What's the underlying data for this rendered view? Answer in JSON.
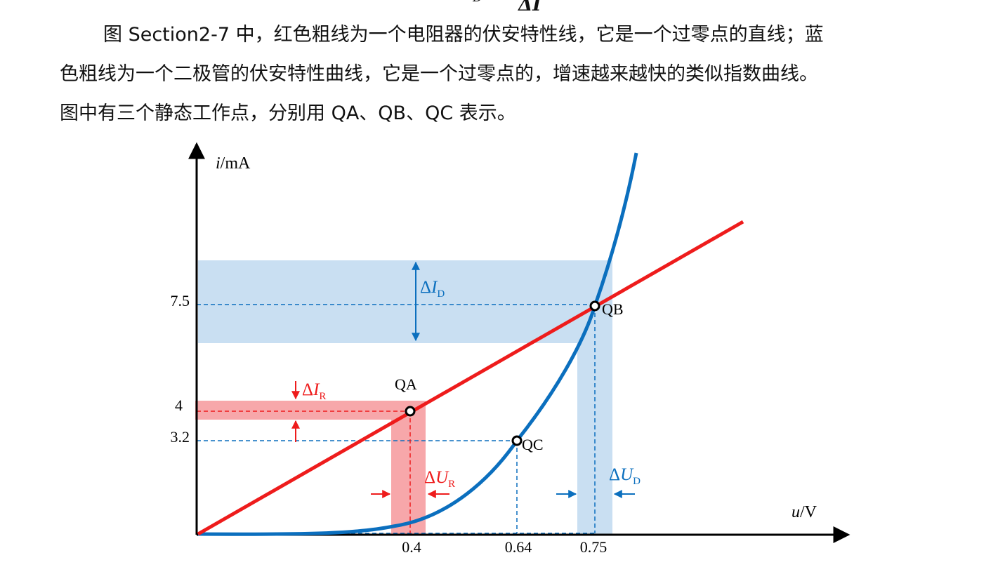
{
  "header_fragment": {
    "delta_symbol": "ΔI",
    "subscript": "D"
  },
  "paragraph": {
    "line1": "图 Section2-7 中，红色粗线为一个电阻器的伏安特性线，它是一个过零点的直线；蓝",
    "line2": "色粗线为一个二极管的伏安特性曲线，它是一个过零点的，增速越来越快的类似指数曲线。",
    "line3": "图中有三个静态工作点，分别用 QA、QB、QC 表示。"
  },
  "figure": {
    "y_axis_label_var": "i",
    "y_axis_label_unit": "/mA",
    "x_axis_label_var": "u",
    "x_axis_label_unit": "/V",
    "y_ticks": [
      "7.5",
      "4",
      "3.2"
    ],
    "x_ticks": [
      "0.4",
      "0.64",
      "0.75"
    ],
    "points": {
      "qa": "QA",
      "qb": "QB",
      "qc": "QC"
    },
    "delta_i_d": {
      "delta": "Δ",
      "var": "I",
      "sub": "D"
    },
    "delta_i_r": {
      "delta": "Δ",
      "var": "I",
      "sub": "R"
    },
    "delta_u_r": {
      "delta": "Δ",
      "var": "U",
      "sub": "R"
    },
    "delta_u_d": {
      "delta": "Δ",
      "var": "U",
      "sub": "D"
    },
    "colors": {
      "resistor": "#ee1c1c",
      "diode": "#0b6fbe",
      "diode_band": "#c9dff2",
      "resistor_band": "#f7a7aa",
      "axis": "#000000"
    }
  },
  "chart_data": {
    "type": "line",
    "xlabel": "u/V",
    "ylabel": "i/mA",
    "x_ticks": [
      0.4,
      0.64,
      0.75
    ],
    "y_ticks": [
      3.2,
      4,
      7.5
    ],
    "series": [
      {
        "x": [
          0,
          0.4,
          0.75,
          1.03
        ],
        "y": [
          0,
          4,
          7.5,
          10.3
        ]
      },
      {
        "x": [
          0,
          0.3,
          0.4,
          0.5,
          0.6,
          0.64,
          0.7,
          0.75,
          0.8
        ],
        "y": [
          0,
          0.05,
          0.3,
          1.0,
          2.4,
          3.2,
          5.2,
          7.5,
          11.8
        ]
      }
    ],
    "points": [
      {
        "label": "QA",
        "x": 0.4,
        "y": 4
      },
      {
        "label": "QB",
        "x": 0.75,
        "y": 7.5
      },
      {
        "label": "QC",
        "x": 0.64,
        "y": 3.2
      }
    ]
  }
}
